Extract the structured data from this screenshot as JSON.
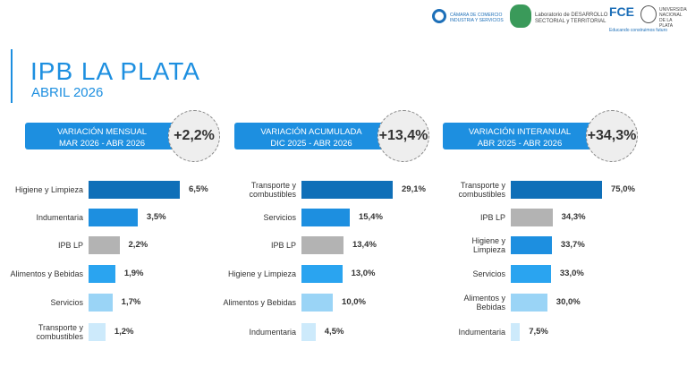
{
  "header": {
    "title": "IPB LA PLATA",
    "subtitle": "ABRIL 2026",
    "logos": [
      "CÁMARA DE COMERCIO",
      "INDUSTRIA Y SERVICIOS",
      "Laboratorio de DESARROLLO",
      "SECTORIAL y TERRITORIAL",
      "FCE",
      "UNIVERSIDAD NACIONAL DE LA PLATA",
      "Educando construimos futuro"
    ]
  },
  "chart_data": [
    {
      "type": "bar",
      "orientation": "horizontal",
      "title": "VARIACIÓN MENSUAL",
      "subtitle": "MAR 2026 - ABR 2026",
      "headline": "+2,2%",
      "categories": [
        "Higiene y Limpieza",
        "Indumentaria",
        "IPB LP",
        "Alimentos y Bebidas",
        "Servicios",
        "Transporte y combustibles"
      ],
      "values": [
        6.5,
        3.5,
        2.2,
        1.9,
        1.7,
        1.2
      ],
      "value_labels": [
        "6,5%",
        "3,5%",
        "2,2%",
        "1,9%",
        "1,7%",
        "1,2%"
      ],
      "colors": [
        "#0f6fb8",
        "#1d8fe0",
        "#b3b3b3",
        "#2aa4f0",
        "#9ad4f6",
        "#cdeafb"
      ]
    },
    {
      "type": "bar",
      "orientation": "horizontal",
      "title": "VARIACIÓN ACUMULADA",
      "subtitle": "DIC 2025 - ABR 2026",
      "headline": "+13,4%",
      "categories": [
        "Transporte y combustibles",
        "Servicios",
        "IPB LP",
        "Higiene y Limpieza",
        "Alimentos y Bebidas",
        "Indumentaria"
      ],
      "values": [
        29.1,
        15.4,
        13.4,
        13.0,
        10.0,
        4.5
      ],
      "value_labels": [
        "29,1%",
        "15,4%",
        "13,4%",
        "13,0%",
        "10,0%",
        "4,5%"
      ],
      "colors": [
        "#0f6fb8",
        "#1d8fe0",
        "#b3b3b3",
        "#2aa4f0",
        "#9ad4f6",
        "#cdeafb"
      ]
    },
    {
      "type": "bar",
      "orientation": "horizontal",
      "title": "VARIACIÓN INTERANUAL",
      "subtitle": "ABR 2025 - ABR 2026",
      "headline": "+34,3%",
      "categories": [
        "Transporte y combustibles",
        "IPB LP",
        "Higiene y Limpieza",
        "Servicios",
        "Alimentos y Bebidas",
        "Indumentaria"
      ],
      "values": [
        75.0,
        34.3,
        33.7,
        33.0,
        30.0,
        7.5
      ],
      "value_labels": [
        "75,0%",
        "34,3%",
        "33,7%",
        "33,0%",
        "30,0%",
        "7,5%"
      ],
      "colors": [
        "#0f6fb8",
        "#b3b3b3",
        "#1d8fe0",
        "#2aa4f0",
        "#9ad4f6",
        "#cdeafb"
      ]
    }
  ]
}
